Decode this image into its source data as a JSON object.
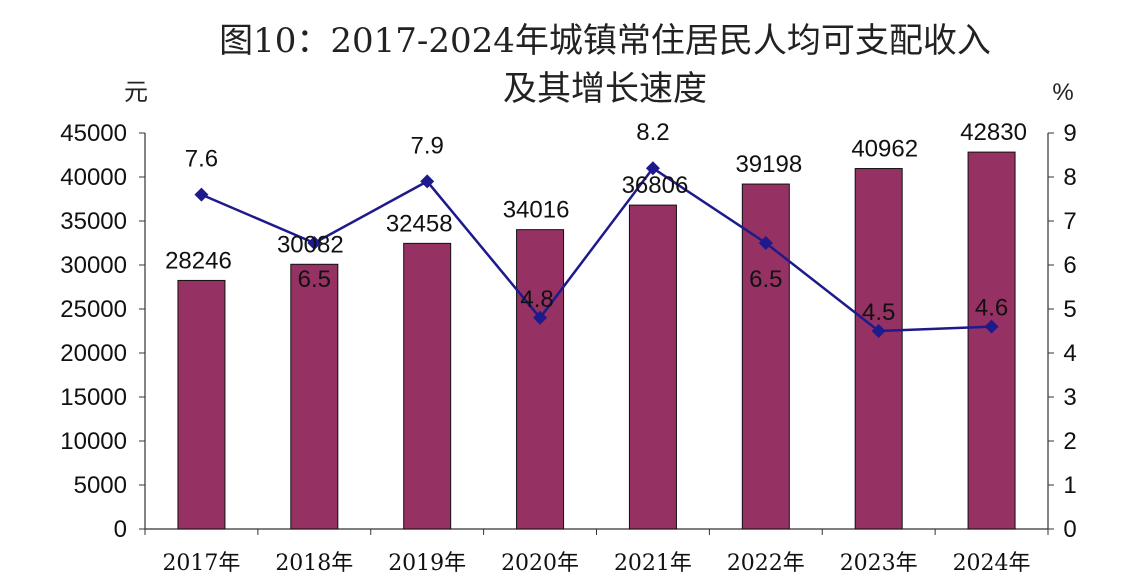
{
  "chart_data": {
    "type": "bar",
    "title_line1": "图10：2017-2024年城镇常住居民人均可支配收入",
    "title_line2": "及其增长速度",
    "left_unit": "元",
    "right_unit": "%",
    "categories": [
      "2017年",
      "2018年",
      "2019年",
      "2020年",
      "2021年",
      "2022年",
      "2023年",
      "2024年"
    ],
    "series": [
      {
        "type": "bar",
        "axis": "left",
        "color": "#953163",
        "values": [
          28246,
          30082,
          32458,
          34016,
          36806,
          39198,
          40962,
          42830
        ],
        "labels": [
          "28246",
          "30082",
          "32458",
          "34016",
          "36806",
          "39198",
          "40962",
          "42830"
        ]
      },
      {
        "type": "line",
        "axis": "right",
        "color": "#1f1a8c",
        "values": [
          7.6,
          6.5,
          7.9,
          4.8,
          8.2,
          6.5,
          4.5,
          4.6
        ],
        "labels": [
          "7.6",
          "6.5",
          "7.9",
          "4.8",
          "8.2",
          "6.5",
          "4.5",
          "4.6"
        ]
      }
    ],
    "left_axis": {
      "ylim": [
        0,
        45000
      ],
      "ticks": [
        "0",
        "5000",
        "10000",
        "15000",
        "20000",
        "25000",
        "30000",
        "35000",
        "40000",
        "45000"
      ]
    },
    "right_axis": {
      "ylim": [
        0,
        9
      ],
      "ticks": [
        "0",
        "1",
        "2",
        "3",
        "4",
        "5",
        "6",
        "7",
        "8",
        "9"
      ]
    },
    "grid": false,
    "legend": "none"
  }
}
